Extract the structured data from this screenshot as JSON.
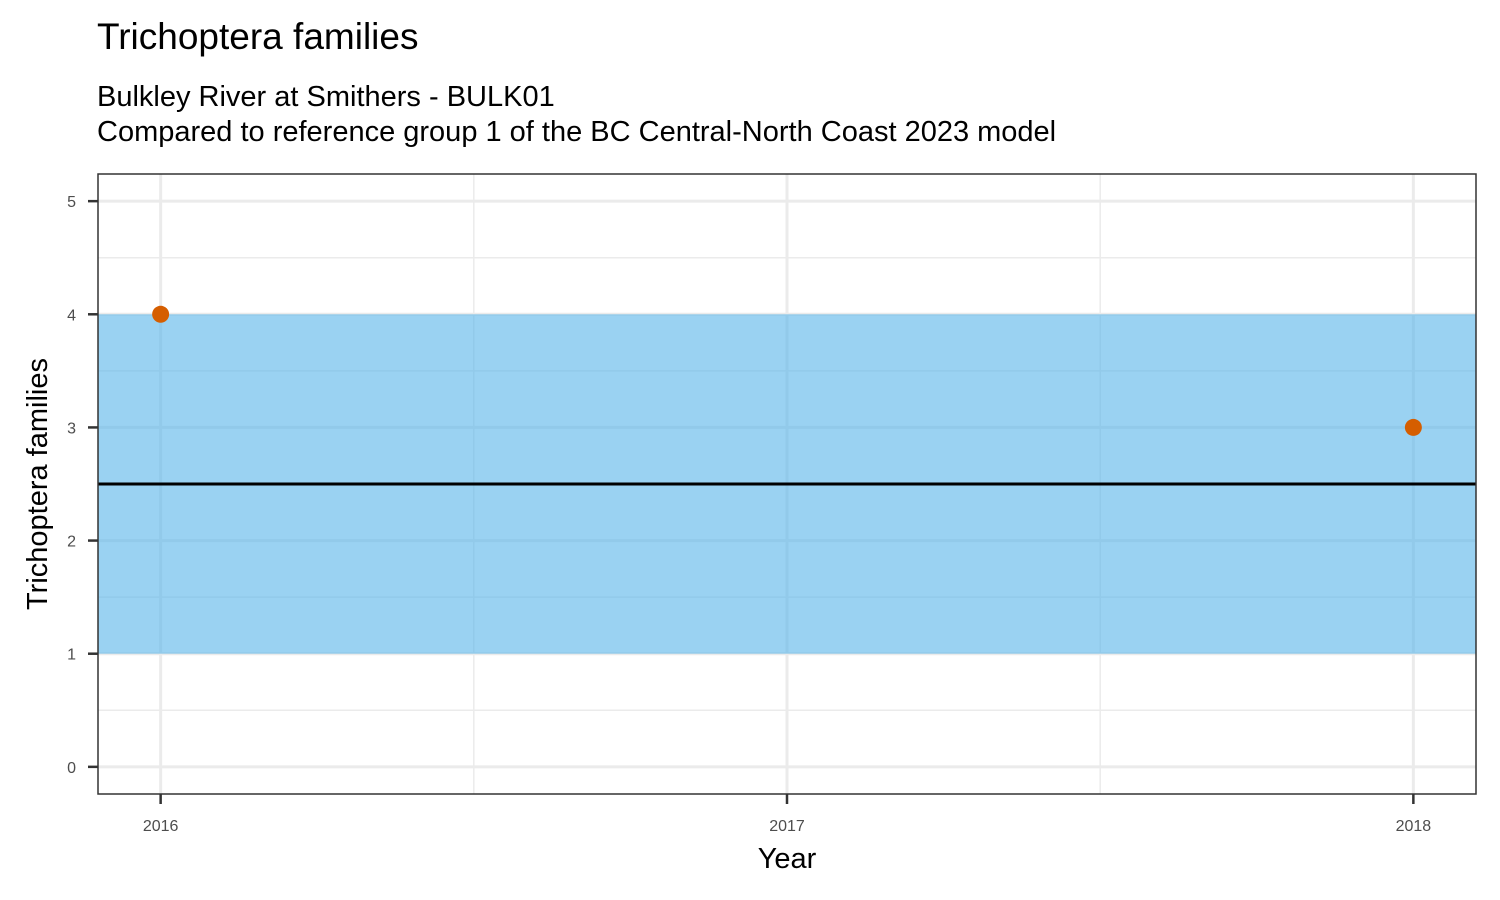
{
  "chart_data": {
    "type": "scatter",
    "title": "Trichoptera families",
    "subtitle": [
      "Bulkley River at Smithers - BULK01",
      "Compared to reference group 1 of the BC Central-North Coast 2023 model"
    ],
    "xlabel": "Year",
    "ylabel": "Trichoptera families",
    "x_ticks": [
      2016,
      2017,
      2018
    ],
    "y_ticks": [
      0,
      1,
      2,
      3,
      4,
      5
    ],
    "xlim": [
      2015.9,
      2018.1
    ],
    "ylim": [
      -0.24,
      5.24
    ],
    "reference_band": {
      "ymin": 1,
      "ymax": 4,
      "color": "#56B4E9"
    },
    "reference_line": {
      "y": 2.5,
      "color": "#000000"
    },
    "points": [
      {
        "x": 2016,
        "y": 4
      },
      {
        "x": 2018,
        "y": 3
      }
    ],
    "point_color": "#D55E00",
    "grid": true
  }
}
